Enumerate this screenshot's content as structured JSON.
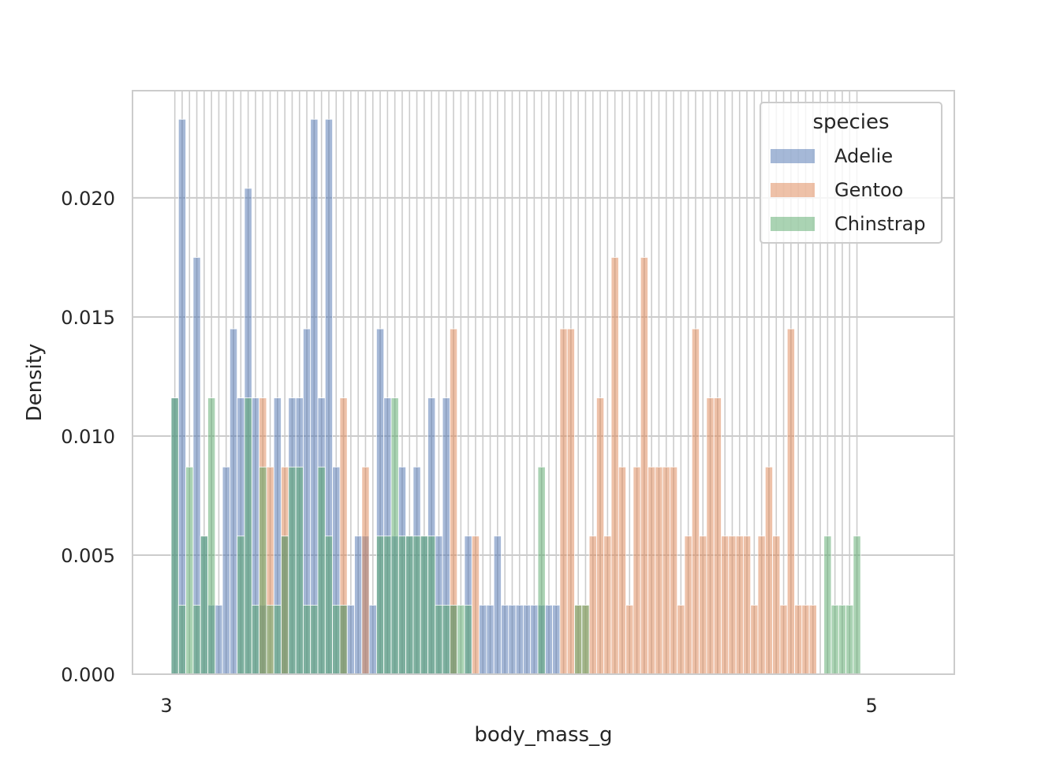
{
  "chart_data": {
    "type": "bar",
    "subtype": "histogram",
    "stat": "density",
    "discrete_x": true,
    "xlabel": "body_mass_g",
    "ylabel": "Density",
    "ylim": [
      0,
      0.0245
    ],
    "yticks": [
      "0.000",
      "0.005",
      "0.010",
      "0.015",
      "0.020"
    ],
    "grid": true,
    "legend": {
      "title": "species",
      "placement": "top-right"
    },
    "first_tick_label": "3",
    "last_tick_label": "5",
    "colors": {
      "Adelie": "#4c72b0",
      "Gentoo": "#dd8452",
      "Chinstrap": "#55a868"
    },
    "series": [
      {
        "name": "Adelie",
        "values": [
          0.0116,
          0.0233,
          0,
          0.0175,
          0.0058,
          0.0029,
          0.0029,
          0.0087,
          0.0145,
          0.0116,
          0.0204,
          0.0116,
          0.0029,
          0,
          0.0116,
          0.0058,
          0.0116,
          0.0116,
          0.0145,
          0.0233,
          0.0116,
          0.0233,
          0.0087,
          0.0029,
          0.0029,
          0.0058,
          0.0058,
          0.0029,
          0.0145,
          0.0116,
          0.0058,
          0.0087,
          0.0058,
          0.0087,
          0.0058,
          0.0116,
          0.0058,
          0.0116,
          0.0029,
          0,
          0.0058,
          0,
          0.0029,
          0.0029,
          0.0058,
          0.0029,
          0.0029,
          0.0029,
          0.0029,
          0.0029,
          0.0029,
          0.0029,
          0.0029,
          0,
          0,
          0,
          0,
          0,
          0,
          0,
          0,
          0,
          0,
          0,
          0,
          0,
          0,
          0,
          0,
          0,
          0,
          0,
          0,
          0,
          0,
          0,
          0,
          0,
          0,
          0,
          0,
          0,
          0,
          0,
          0,
          0,
          0,
          0,
          0,
          0,
          0,
          0,
          0,
          0
        ]
      },
      {
        "name": "Gentoo",
        "values": [
          0,
          0,
          0,
          0,
          0,
          0,
          0,
          0,
          0,
          0,
          0,
          0,
          0.0116,
          0.0087,
          0,
          0.0087,
          0,
          0,
          0,
          0,
          0,
          0,
          0,
          0.0116,
          0,
          0,
          0.0087,
          0,
          0,
          0,
          0,
          0,
          0,
          0,
          0,
          0,
          0,
          0,
          0.0145,
          0,
          0,
          0.0058,
          0,
          0,
          0,
          0,
          0,
          0,
          0,
          0,
          0,
          0,
          0,
          0.0145,
          0.0145,
          0.0029,
          0.0029,
          0.0058,
          0.0116,
          0.0058,
          0.0175,
          0.0087,
          0.0029,
          0.0087,
          0.0175,
          0.0087,
          0.0087,
          0.0087,
          0.0087,
          0.0029,
          0.0058,
          0.0145,
          0.0058,
          0.0116,
          0.0116,
          0.0058,
          0.0058,
          0.0058,
          0.0058,
          0.0029,
          0.0058,
          0.0087,
          0.0058,
          0.0029,
          0.0145,
          0.0029,
          0.0029,
          0.0029,
          0,
          0,
          0,
          0,
          0
        ]
      },
      {
        "name": "Chinstrap",
        "values": [
          0.0116,
          0.0029,
          0.0087,
          0.0029,
          0.0058,
          0.0116,
          0,
          0,
          0,
          0.0058,
          0.0116,
          0.0029,
          0.0087,
          0.0029,
          0.0029,
          0.0058,
          0.0087,
          0.0087,
          0.0029,
          0.0029,
          0.0087,
          0.0058,
          0.0029,
          0.0029,
          0,
          0,
          0,
          0,
          0.0058,
          0.0058,
          0.0116,
          0.0058,
          0.0058,
          0.0058,
          0.0058,
          0.0058,
          0.0029,
          0.0029,
          0.0029,
          0.0029,
          0.0029,
          0,
          0,
          0,
          0,
          0,
          0,
          0,
          0,
          0,
          0.0087,
          0,
          0,
          0,
          0,
          0.0029,
          0.0029,
          0,
          0,
          0,
          0,
          0,
          0,
          0,
          0,
          0,
          0,
          0,
          0,
          0,
          0,
          0,
          0,
          0,
          0,
          0,
          0,
          0,
          0,
          0,
          0,
          0,
          0,
          0,
          0,
          0,
          0,
          0,
          0,
          0.0058,
          0.0029,
          0.0029,
          0.0029,
          0.0058
        ]
      }
    ]
  }
}
